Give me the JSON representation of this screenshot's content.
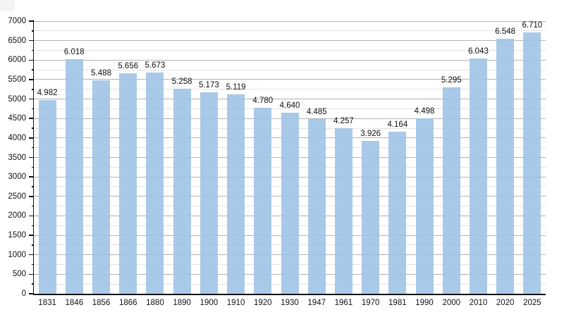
{
  "chart_data": {
    "type": "bar",
    "title": "",
    "xlabel": "",
    "ylabel": "",
    "categories": [
      "1831",
      "1846",
      "1856",
      "1866",
      "1880",
      "1890",
      "1900",
      "1910",
      "1920",
      "1930",
      "1947",
      "1961",
      "1970",
      "1981",
      "1990",
      "2000",
      "2010",
      "2020",
      "2025"
    ],
    "values": [
      4982,
      6018,
      5488,
      5656,
      5673,
      5258,
      5173,
      5119,
      4780,
      4640,
      4485,
      4257,
      3926,
      4164,
      4498,
      5295,
      6043,
      6548,
      6710
    ],
    "value_labels": [
      "4.982",
      "6.018",
      "5.488",
      "5.656",
      "5.673",
      "5.258",
      "5.173",
      "5.119",
      "4.780",
      "4.640",
      "4.485",
      "4.257",
      "3.926",
      "4.164",
      "4.498",
      "5.295",
      "6.043",
      "6.548",
      "6.710"
    ],
    "ylim": [
      0,
      7000
    ],
    "ytick_step": 500,
    "yminor_step": 250,
    "ytick_labels": [
      "0",
      "500",
      "1000",
      "1500",
      "2000",
      "2500",
      "3000",
      "3500",
      "4000",
      "4500",
      "5000",
      "5500",
      "6000",
      "6500",
      "7000"
    ],
    "grid": true,
    "legend_position": "none"
  },
  "style": {
    "background": "#ffffff",
    "bar_fill": "rgba(160,195,229,0.9)",
    "grid_major_color": "#b3b3b3",
    "grid_minor_color": "#e2e2e2",
    "axis_color": "#111111",
    "label_color": "#111111",
    "corner_artifact_color": "#f4f4f4"
  }
}
